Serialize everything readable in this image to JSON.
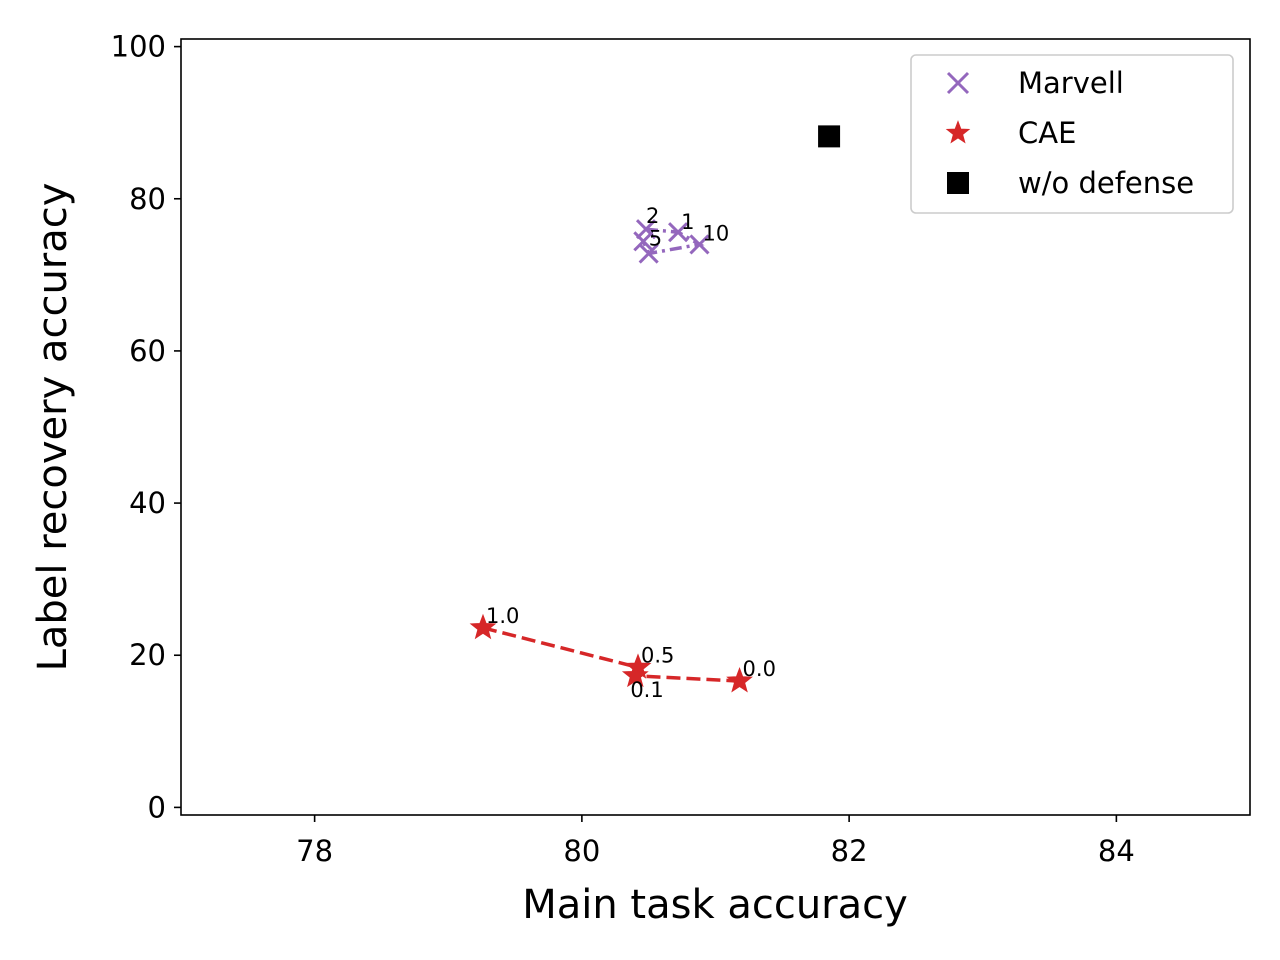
{
  "chart_data": {
    "type": "scatter",
    "xlabel": "Main task accuracy",
    "ylabel": "Label recovery accuracy",
    "xlim": [
      77.0,
      85.0
    ],
    "ylim": [
      -1.0,
      101.0
    ],
    "xticks": [
      78,
      80,
      82,
      84
    ],
    "yticks": [
      0,
      20,
      40,
      60,
      80,
      100
    ],
    "grid": false,
    "legend_position": "top-right",
    "series": [
      {
        "name": "Marvell",
        "color": "#9467bd",
        "marker": "x",
        "line": "dashdot",
        "points": [
          {
            "x": 80.48,
            "y": 76.0,
            "label": "2"
          },
          {
            "x": 80.72,
            "y": 75.6,
            "label": "1"
          },
          {
            "x": 80.88,
            "y": 74.0,
            "label": "10"
          },
          {
            "x": 80.5,
            "y": 72.8,
            "label": "5"
          },
          {
            "x": 80.46,
            "y": 74.4,
            "label": ""
          }
        ]
      },
      {
        "name": "CAE",
        "color": "#d62728",
        "marker": "star",
        "line": "dashed",
        "points": [
          {
            "x": 79.26,
            "y": 23.6,
            "label": "1.0"
          },
          {
            "x": 80.42,
            "y": 18.4,
            "label": "0.5"
          },
          {
            "x": 80.4,
            "y": 17.3,
            "label": "0.1"
          },
          {
            "x": 81.18,
            "y": 16.6,
            "label": "0.0"
          }
        ]
      },
      {
        "name": "w/o defense",
        "color": "#000000",
        "marker": "square",
        "line": "none",
        "points": [
          {
            "x": 81.85,
            "y": 88.2,
            "label": ""
          }
        ]
      }
    ]
  }
}
